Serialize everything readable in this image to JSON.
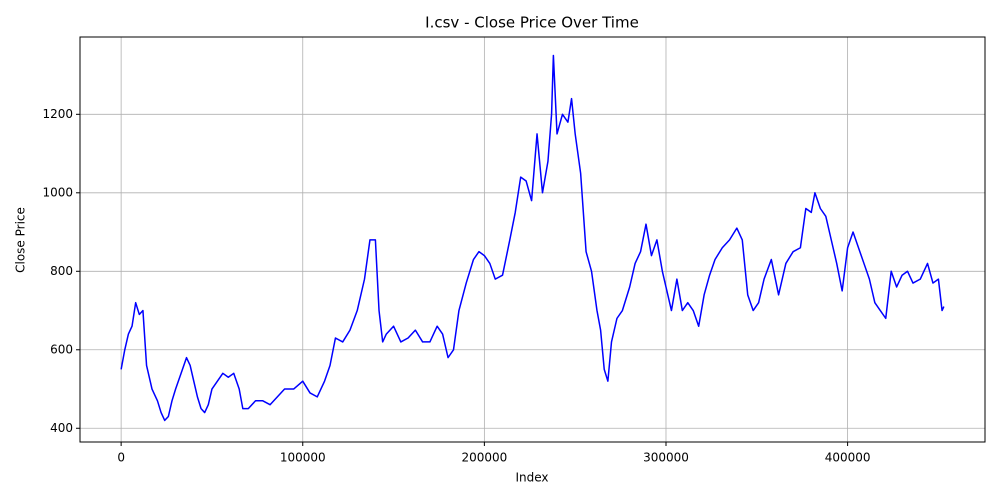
{
  "chart_data": {
    "type": "line",
    "title": "I.csv - Close Price Over Time",
    "x_label": "Index",
    "y_label": "Close Price",
    "x": [
      0,
      2000,
      4000,
      6000,
      8000,
      10000,
      12000,
      14000,
      17000,
      20000,
      22000,
      24000,
      26000,
      28000,
      30000,
      33000,
      36000,
      38000,
      40000,
      42000,
      44000,
      46000,
      48000,
      50000,
      53000,
      56000,
      59000,
      62000,
      65000,
      67000,
      70000,
      74000,
      78000,
      82000,
      86000,
      90000,
      95000,
      100000,
      104000,
      108000,
      112000,
      115000,
      118000,
      122000,
      126000,
      130000,
      134000,
      137000,
      140000,
      142000,
      144000,
      146000,
      150000,
      154000,
      158000,
      162000,
      166000,
      170000,
      174000,
      177000,
      180000,
      183000,
      186000,
      190000,
      194000,
      197000,
      200000,
      203000,
      206000,
      210000,
      214000,
      217000,
      220000,
      223000,
      226000,
      229000,
      232000,
      235000,
      237000,
      238000,
      240000,
      243000,
      246000,
      248000,
      250000,
      253000,
      256000,
      259000,
      262000,
      264000,
      266000,
      268000,
      270000,
      273000,
      276000,
      280000,
      283000,
      286000,
      289000,
      292000,
      295000,
      298000,
      300000,
      303000,
      306000,
      309000,
      312000,
      315000,
      318000,
      321000,
      324000,
      327000,
      331000,
      335000,
      339000,
      342000,
      345000,
      348000,
      351000,
      354000,
      358000,
      362000,
      366000,
      370000,
      374000,
      377000,
      380000,
      382000,
      385000,
      388000,
      391000,
      394000,
      397000,
      400000,
      403000,
      406000,
      409000,
      412000,
      415000,
      418000,
      421000,
      424000,
      427000,
      430000,
      433000,
      436000,
      440000,
      444000,
      447000,
      450000,
      452000,
      453000
    ],
    "values": [
      550,
      600,
      640,
      660,
      720,
      690,
      700,
      560,
      500,
      470,
      440,
      420,
      430,
      470,
      500,
      540,
      580,
      560,
      520,
      480,
      450,
      440,
      460,
      500,
      520,
      540,
      530,
      540,
      500,
      450,
      450,
      470,
      470,
      460,
      480,
      500,
      500,
      520,
      490,
      480,
      520,
      560,
      630,
      620,
      650,
      700,
      780,
      880,
      880,
      700,
      620,
      640,
      660,
      620,
      630,
      650,
      620,
      620,
      660,
      640,
      580,
      600,
      700,
      770,
      830,
      850,
      840,
      820,
      780,
      790,
      880,
      950,
      1040,
      1030,
      980,
      1150,
      1000,
      1080,
      1200,
      1350,
      1150,
      1200,
      1180,
      1240,
      1150,
      1050,
      850,
      800,
      700,
      650,
      550,
      520,
      620,
      680,
      700,
      760,
      820,
      850,
      920,
      840,
      880,
      800,
      760,
      700,
      780,
      700,
      720,
      700,
      660,
      740,
      790,
      830,
      860,
      880,
      910,
      880,
      740,
      700,
      720,
      780,
      830,
      740,
      820,
      850,
      860,
      960,
      950,
      1000,
      960,
      940,
      880,
      820,
      750,
      860,
      900,
      860,
      820,
      780,
      720,
      700,
      680,
      800,
      760,
      790,
      800,
      770,
      780,
      820,
      770,
      780,
      700,
      710
    ],
    "color": "#0000ff",
    "xlim": [
      -22650,
      475650
    ],
    "ylim": [
      365,
      1397
    ],
    "xticks": [
      0,
      100000,
      200000,
      300000,
      400000
    ],
    "yticks": [
      400,
      600,
      800,
      1000,
      1200
    ],
    "grid": true
  }
}
